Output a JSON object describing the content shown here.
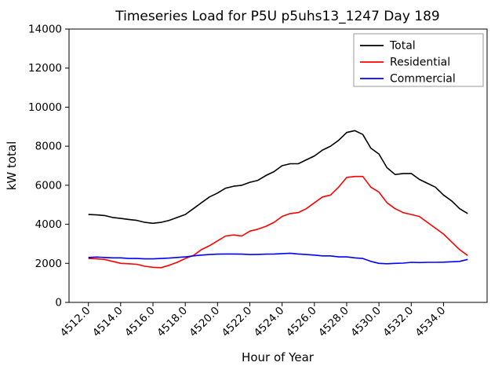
{
  "figure": {
    "title": "Timeseries Load for P5U p5uhs13_1247  Day 189",
    "xlabel": "Hour of Year",
    "ylabel": "kW total"
  },
  "chart_data": {
    "type": "line",
    "title": "Timeseries Load for P5U p5uhs13_1247  Day 189",
    "xlabel": "Hour of Year",
    "ylabel": "kW total",
    "grid": false,
    "legend_position": "upper right",
    "xlim": [
      4510.8,
      4536.7
    ],
    "ylim": [
      0,
      14000
    ],
    "x_tick_values": [
      4512,
      4514,
      4516,
      4518,
      4520,
      4522,
      4524,
      4526,
      4528,
      4530,
      4532,
      4534
    ],
    "x_tick_labels": [
      "4512.0",
      "4514.0",
      "4516.0",
      "4518.0",
      "4520.0",
      "4522.0",
      "4524.0",
      "4526.0",
      "4528.0",
      "4530.0",
      "4532.0",
      "4534.0"
    ],
    "y_tick_values": [
      0,
      2000,
      4000,
      6000,
      8000,
      10000,
      12000,
      14000
    ],
    "y_tick_labels": [
      "0",
      "2000",
      "4000",
      "6000",
      "8000",
      "10000",
      "12000",
      "14000"
    ],
    "x": [
      4512.0,
      4512.5,
      4513.0,
      4513.5,
      4514.0,
      4514.5,
      4515.0,
      4515.5,
      4516.0,
      4516.5,
      4517.0,
      4517.5,
      4518.0,
      4518.5,
      4519.0,
      4519.5,
      4520.0,
      4520.5,
      4521.0,
      4521.5,
      4522.0,
      4522.5,
      4523.0,
      4523.5,
      4524.0,
      4524.5,
      4525.0,
      4525.5,
      4526.0,
      4526.5,
      4527.0,
      4527.5,
      4528.0,
      4528.5,
      4529.0,
      4529.5,
      4530.0,
      4530.5,
      4531.0,
      4531.5,
      4532.0,
      4532.5,
      4533.0,
      4533.5,
      4534.0,
      4534.5,
      4535.0,
      4535.5
    ],
    "series": [
      {
        "name": "Total",
        "color": "#000000",
        "values": [
          4500,
          4480,
          4450,
          4350,
          4300,
          4250,
          4200,
          4100,
          4050,
          4100,
          4200,
          4350,
          4500,
          4800,
          5100,
          5400,
          5600,
          5850,
          5950,
          6000,
          6150,
          6250,
          6500,
          6700,
          7000,
          7100,
          7100,
          7300,
          7500,
          7800,
          8000,
          8300,
          8700,
          8800,
          8600,
          7900,
          7600,
          6900,
          6550,
          6600,
          6600,
          6300,
          6100,
          5900,
          5500,
          5200,
          4800,
          4550
        ]
      },
      {
        "name": "Residential",
        "color": "#ff0000",
        "values": [
          2250,
          2230,
          2200,
          2100,
          2000,
          1980,
          1950,
          1850,
          1800,
          1780,
          1900,
          2050,
          2250,
          2400,
          2700,
          2900,
          3150,
          3400,
          3450,
          3400,
          3650,
          3750,
          3900,
          4100,
          4400,
          4550,
          4600,
          4800,
          5100,
          5400,
          5500,
          5900,
          6400,
          6450,
          6450,
          5900,
          5650,
          5100,
          4800,
          4600,
          4500,
          4400,
          4100,
          3800,
          3500,
          3100,
          2700,
          2400
        ]
      },
      {
        "name": "Commercial",
        "color": "#0000ff",
        "values": [
          2300,
          2320,
          2300,
          2280,
          2280,
          2250,
          2250,
          2230,
          2230,
          2250,
          2270,
          2300,
          2330,
          2380,
          2420,
          2450,
          2470,
          2480,
          2480,
          2470,
          2450,
          2460,
          2470,
          2480,
          2500,
          2520,
          2480,
          2450,
          2420,
          2380,
          2380,
          2330,
          2330,
          2280,
          2250,
          2100,
          2000,
          1980,
          2000,
          2010,
          2050,
          2040,
          2050,
          2050,
          2060,
          2080,
          2100,
          2200
        ]
      }
    ]
  }
}
